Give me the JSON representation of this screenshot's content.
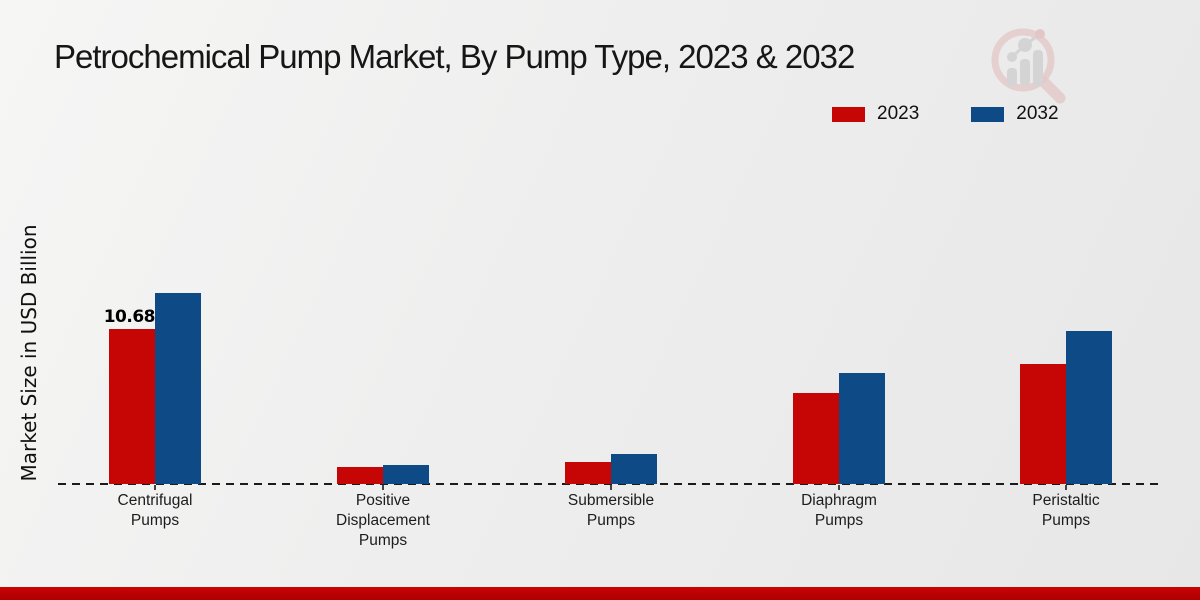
{
  "title": "Petrochemical Pump Market, By Pump Type, 2023 & 2032",
  "y_axis_label": "Market Size in USD Billion",
  "legend": [
    {
      "label": "2023",
      "color": "#c60505"
    },
    {
      "label": "2032",
      "color": "#0e4a86"
    }
  ],
  "colors": {
    "bar_2023": "#c60505",
    "bar_2032": "#0e4a86",
    "footer_bar": "#c00000",
    "background": "#ededed",
    "baseline": "#1b1b1b",
    "watermark_pink": "#dcaaaa",
    "watermark_gray": "#c3c3c3"
  },
  "watermark": "magnifier-bar-chart-logo",
  "chart_data": {
    "type": "bar",
    "title": "Petrochemical Pump Market, By Pump Type, 2023 & 2032",
    "ylabel": "Market Size in USD Billion",
    "xlabel": "",
    "ylim": [
      0,
      14
    ],
    "grid": false,
    "legend_position": "top-right",
    "baseline_style": "dashed",
    "categories": [
      "Centrifugal Pumps",
      "Positive Displacement Pumps",
      "Submersible Pumps",
      "Diaphragm Pumps",
      "Peristaltic Pumps"
    ],
    "category_label_lines": [
      [
        "Centrifugal",
        "Pumps"
      ],
      [
        "Positive",
        "Displacement",
        "Pumps"
      ],
      [
        "Submersible",
        "Pumps"
      ],
      [
        "Diaphragm",
        "Pumps"
      ],
      [
        "Peristaltic",
        "Pumps"
      ]
    ],
    "series": [
      {
        "name": "2023",
        "color": "#c60505",
        "values": [
          10.68,
          1.15,
          1.55,
          6.25,
          8.28
        ]
      },
      {
        "name": "2032",
        "color": "#0e4a86",
        "values": [
          13.17,
          1.3,
          2.05,
          7.65,
          10.53
        ]
      }
    ],
    "data_labels": [
      {
        "series": "2023",
        "category": "Centrifugal Pumps",
        "text": "10.68"
      }
    ]
  }
}
